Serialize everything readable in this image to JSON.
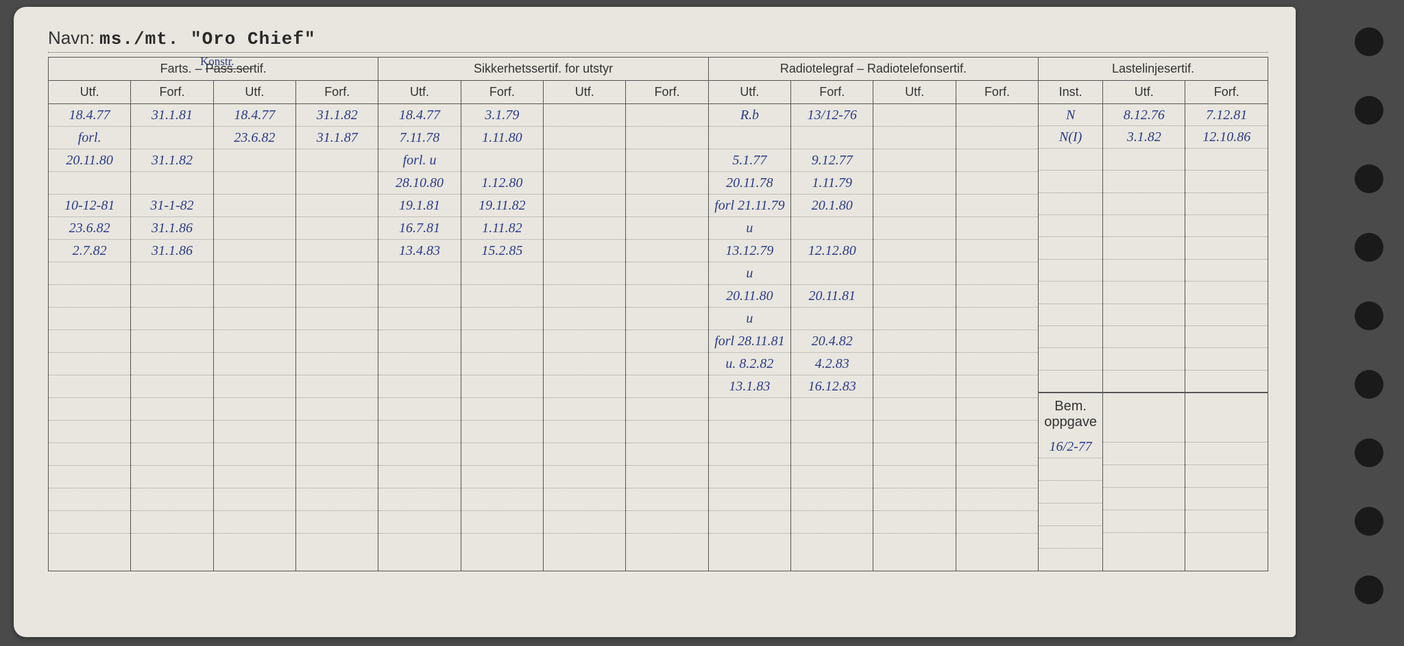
{
  "title_label": "Navn:",
  "title_value": "ms./mt. \"Oro Chief\"",
  "section_headers": {
    "farts": "Farts. – Pass.sertif.",
    "farts_annotation": "Konstr.",
    "sikkerhet": "Sikkerhetssertif. for utstyr",
    "radio": "Radiotelegraf – Radiotelefonsertif.",
    "laste": "Lastelinjesertif.",
    "bem": "Bem. oppgave"
  },
  "col_labels": {
    "utf": "Utf.",
    "forf": "Forf.",
    "inst": "Inst."
  },
  "farts1": {
    "utf": [
      "18.4.77",
      "forl.",
      "20.11.80",
      "",
      "10-12-81",
      "23.6.82",
      "2.7.82",
      "",
      "",
      "",
      "",
      "",
      "",
      "",
      "",
      "",
      "",
      "",
      "",
      ""
    ],
    "forf": [
      "31.1.81",
      "",
      "31.1.82",
      "",
      "31-1-82",
      "31.1.86",
      "31.1.86",
      "",
      "",
      "",
      "",
      "",
      "",
      "",
      "",
      "",
      "",
      "",
      "",
      ""
    ]
  },
  "farts2": {
    "utf": [
      "18.4.77",
      "23.6.82",
      "",
      "",
      "",
      "",
      "",
      "",
      "",
      "",
      "",
      "",
      "",
      "",
      "",
      "",
      "",
      "",
      "",
      ""
    ],
    "forf": [
      "31.1.82",
      "31.1.87",
      "",
      "",
      "",
      "",
      "",
      "",
      "",
      "",
      "",
      "",
      "",
      "",
      "",
      "",
      "",
      "",
      "",
      ""
    ]
  },
  "sikk1": {
    "utf": [
      "18.4.77",
      "7.11.78",
      "forl. u",
      "28.10.80",
      "19.1.81",
      "16.7.81",
      "13.4.83",
      "",
      "",
      "",
      "",
      "",
      "",
      "",
      "",
      "",
      "",
      "",
      "",
      ""
    ],
    "forf": [
      "3.1.79",
      "1.11.80",
      "",
      "1.12.80",
      "19.11.82",
      "1.11.82",
      "15.2.85",
      "",
      "",
      "",
      "",
      "",
      "",
      "",
      "",
      "",
      "",
      "",
      "",
      ""
    ]
  },
  "sikk2": {
    "utf": [
      "",
      "",
      "",
      "",
      "",
      "",
      "",
      "",
      "",
      "",
      "",
      "",
      "",
      "",
      "",
      "",
      "",
      "",
      "",
      ""
    ],
    "forf": [
      "",
      "",
      "",
      "",
      "",
      "",
      "",
      "",
      "",
      "",
      "",
      "",
      "",
      "",
      "",
      "",
      "",
      "",
      "",
      ""
    ]
  },
  "radio1": {
    "utf": [
      "R.b",
      "",
      "5.1.77",
      "20.11.78",
      "forl 21.11.79",
      "u",
      "13.12.79",
      "u",
      "20.11.80",
      "u",
      "forl 28.11.81",
      "u. 8.2.82",
      "13.1.83",
      "",
      "",
      "",
      "",
      "",
      "",
      ""
    ],
    "forf": [
      "13/12-76",
      "",
      "9.12.77",
      "1.11.79",
      "20.1.80",
      "",
      "12.12.80",
      "",
      "20.11.81",
      "",
      "20.4.82",
      "4.2.83",
      "16.12.83",
      "",
      "",
      "",
      "",
      "",
      "",
      ""
    ]
  },
  "radio2": {
    "utf": [
      "",
      "",
      "",
      "",
      "",
      "",
      "",
      "",
      "",
      "",
      "",
      "",
      "",
      "",
      "",
      "",
      "",
      "",
      "",
      ""
    ],
    "forf": [
      "",
      "",
      "",
      "",
      "",
      "",
      "",
      "",
      "",
      "",
      "",
      "",
      "",
      "",
      "",
      "",
      "",
      "",
      "",
      ""
    ]
  },
  "laste": {
    "inst": [
      "N",
      "N(I)",
      "",
      "",
      "",
      "",
      "",
      "",
      "",
      "",
      "",
      "",
      ""
    ],
    "utf": [
      "8.12.76",
      "3.1.82",
      "",
      "",
      "",
      "",
      "",
      "",
      "",
      "",
      "",
      "",
      ""
    ],
    "forf": [
      "7.12.81",
      "12.10.86",
      "",
      "",
      "",
      "",
      "",
      "",
      "",
      "",
      "",
      "",
      ""
    ]
  },
  "bem": {
    "c1": [
      "16/2-77",
      "",
      "",
      "",
      "",
      ""
    ],
    "c2": [
      "",
      "",
      "",
      "",
      "",
      ""
    ],
    "c3": [
      "",
      "",
      "",
      "",
      "",
      ""
    ]
  },
  "colors": {
    "paper": "#e8e6de",
    "ink_print": "#333333",
    "ink_hand": "#2b3a8a",
    "border": "#555555",
    "dotted": "#999999"
  }
}
